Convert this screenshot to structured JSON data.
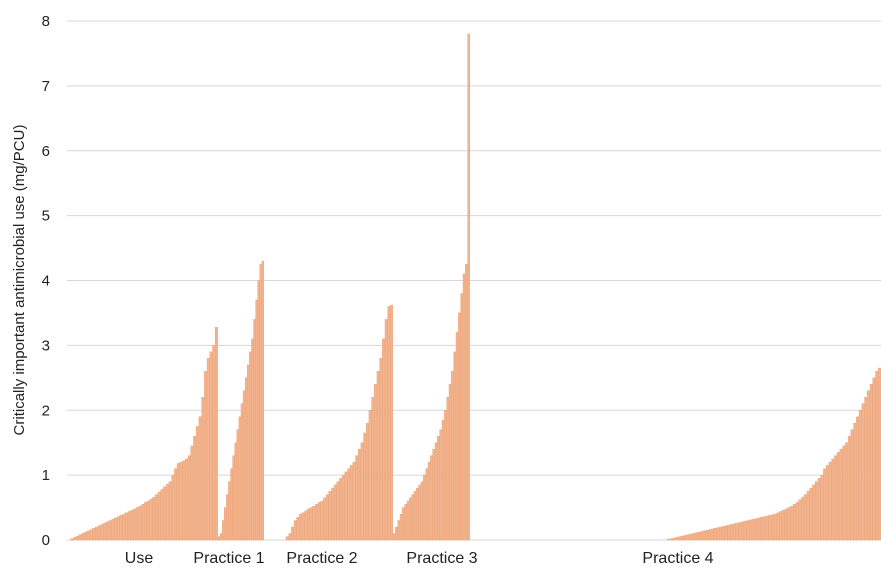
{
  "chart_data": {
    "type": "bar",
    "title": "",
    "xlabel": "",
    "ylabel": "Critically important antimicrobial use (mg/PCU)",
    "ylim": [
      0,
      8
    ],
    "yticks": [
      "0",
      "1",
      "2",
      "3",
      "4",
      "5",
      "6",
      "7",
      "8"
    ],
    "grid": true,
    "legend": "none",
    "bar_color": "#f2b48e",
    "categories": [
      "Use",
      "Practice 1",
      "Practice 2",
      "Practice 3",
      "Practice 4"
    ],
    "groups": [
      {
        "name": "Use",
        "values": [
          0.0,
          0.02,
          0.04,
          0.06,
          0.08,
          0.1,
          0.12,
          0.14,
          0.16,
          0.18,
          0.2,
          0.22,
          0.24,
          0.26,
          0.28,
          0.3,
          0.32,
          0.34,
          0.36,
          0.38,
          0.4,
          0.42,
          0.44,
          0.46,
          0.48,
          0.5,
          0.52,
          0.55,
          0.58,
          0.6,
          0.63,
          0.66,
          0.7,
          0.74,
          0.78,
          0.82,
          0.86,
          0.9,
          1.0,
          1.1,
          1.18,
          1.2,
          1.22,
          1.25,
          1.3,
          1.45,
          1.6,
          1.75,
          1.9,
          2.2,
          2.6,
          2.8,
          2.9,
          3.0,
          3.28
        ]
      },
      {
        "name": "Practice 1",
        "values": [
          0.05,
          0.1,
          0.3,
          0.5,
          0.7,
          0.9,
          1.1,
          1.3,
          1.5,
          1.7,
          1.9,
          2.1,
          2.3,
          2.5,
          2.7,
          2.9,
          3.1,
          3.4,
          3.7,
          4.0,
          4.25,
          4.3
        ]
      },
      {
        "name": "Practice 2",
        "values": [
          0.05,
          0.1,
          0.2,
          0.3,
          0.35,
          0.4,
          0.42,
          0.45,
          0.48,
          0.5,
          0.52,
          0.55,
          0.58,
          0.6,
          0.65,
          0.7,
          0.75,
          0.8,
          0.85,
          0.9,
          0.95,
          1.0,
          1.05,
          1.1,
          1.15,
          1.2,
          1.3,
          1.4,
          1.5,
          1.65,
          1.8,
          2.0,
          2.2,
          2.4,
          2.6,
          2.8,
          3.1,
          3.4,
          3.6,
          3.62
        ]
      },
      {
        "name": "Practice 3",
        "values": [
          0.1,
          0.2,
          0.3,
          0.4,
          0.5,
          0.55,
          0.6,
          0.65,
          0.7,
          0.75,
          0.8,
          0.85,
          0.9,
          1.0,
          1.1,
          1.2,
          1.3,
          1.4,
          1.5,
          1.6,
          1.7,
          1.85,
          2.0,
          2.2,
          2.4,
          2.6,
          2.9,
          3.2,
          3.5,
          3.8,
          4.1,
          4.25,
          7.8
        ]
      },
      {
        "name": "Practice 4",
        "values": [
          0.0,
          0.0,
          0.0,
          0.0,
          0.0,
          0.0,
          0.0,
          0.0,
          0.0,
          0.0,
          0.0,
          0.0,
          0.0,
          0.0,
          0.0,
          0.0,
          0.0,
          0.0,
          0.0,
          0.0,
          0.0,
          0.0,
          0.0,
          0.0,
          0.0,
          0.0,
          0.0,
          0.0,
          0.0,
          0.0,
          0.0,
          0.0,
          0.0,
          0.0,
          0.0,
          0.0,
          0.0,
          0.0,
          0.0,
          0.0,
          0.0,
          0.0,
          0.0,
          0.0,
          0.0,
          0.0,
          0.0,
          0.0,
          0.0,
          0.0,
          0.0,
          0.0,
          0.0,
          0.0,
          0.0,
          0.0,
          0.0,
          0.0,
          0.0,
          0.0,
          0.0,
          0.01,
          0.02,
          0.03,
          0.04,
          0.05,
          0.06,
          0.07,
          0.08,
          0.09,
          0.1,
          0.11,
          0.12,
          0.13,
          0.14,
          0.15,
          0.16,
          0.17,
          0.18,
          0.19,
          0.2,
          0.21,
          0.22,
          0.23,
          0.24,
          0.25,
          0.26,
          0.27,
          0.28,
          0.29,
          0.3,
          0.31,
          0.32,
          0.33,
          0.34,
          0.35,
          0.36,
          0.37,
          0.38,
          0.39,
          0.4,
          0.42,
          0.44,
          0.46,
          0.48,
          0.5,
          0.52,
          0.55,
          0.58,
          0.62,
          0.66,
          0.7,
          0.75,
          0.8,
          0.85,
          0.9,
          0.95,
          1.0,
          1.1,
          1.15,
          1.2,
          1.25,
          1.3,
          1.35,
          1.4,
          1.45,
          1.5,
          1.6,
          1.7,
          1.8,
          1.9,
          2.0,
          2.1,
          2.2,
          2.3,
          2.4,
          2.5,
          2.6,
          2.65
        ]
      }
    ]
  }
}
